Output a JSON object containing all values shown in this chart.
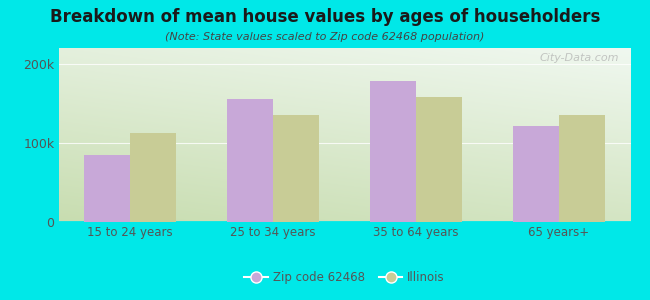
{
  "title": "Breakdown of mean house values by ages of householders",
  "subtitle": "(Note: State values scaled to Zip code 62468 population)",
  "categories": [
    "15 to 24 years",
    "25 to 34 years",
    "35 to 64 years",
    "65 years+"
  ],
  "zip_values": [
    85000,
    155000,
    178000,
    122000
  ],
  "illinois_values": [
    112000,
    135000,
    158000,
    135000
  ],
  "zip_color": "#c8a8d8",
  "illinois_color": "#c8cc96",
  "background_color": "#00e8e8",
  "grad_top": "#f0f8f0",
  "grad_bottom": "#c8ddb0",
  "ylim": [
    0,
    220000
  ],
  "ytick_vals": [
    0,
    100000,
    200000
  ],
  "ytick_labels": [
    "0",
    "100k",
    "200k"
  ],
  "bar_width": 0.32,
  "legend_labels": [
    "Zip code 62468",
    "Illinois"
  ],
  "watermark": "City-Data.com",
  "title_color": "#1a1a1a",
  "subtitle_color": "#444444",
  "tick_color": "#555555"
}
